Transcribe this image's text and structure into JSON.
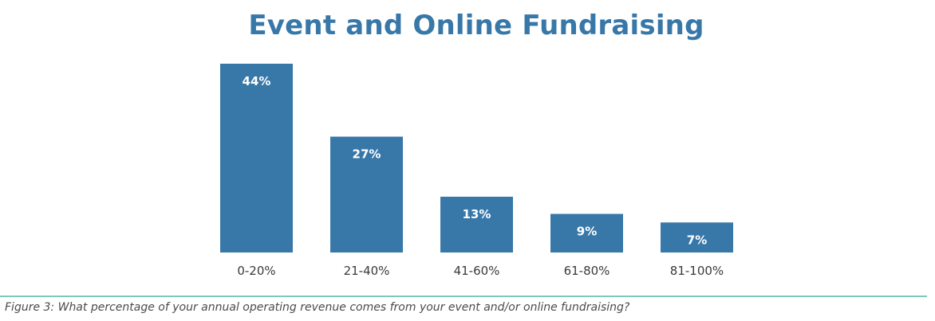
{
  "title": "Event and Online Fundraising",
  "caption": "Figure 3: What percentage of your annual operating revenue comes from your event and/or online fundraising?",
  "colors": {
    "bar": "#3878a9",
    "title": "#3878a9",
    "bar_label": "#ffffff",
    "tick_label": "#3a3a3a",
    "divider": "#7ec9bd"
  },
  "chart_data": {
    "type": "bar",
    "title": "Event and Online Fundraising",
    "categories": [
      "0-20%",
      "21-40%",
      "41-60%",
      "61-80%",
      "81-100%"
    ],
    "values": [
      44,
      27,
      13,
      9,
      7
    ],
    "data_labels": [
      "44%",
      "27%",
      "13%",
      "9%",
      "7%"
    ],
    "xlabel": "",
    "ylabel": "",
    "ylim": [
      0,
      44
    ],
    "grid": false,
    "legend": "none"
  }
}
